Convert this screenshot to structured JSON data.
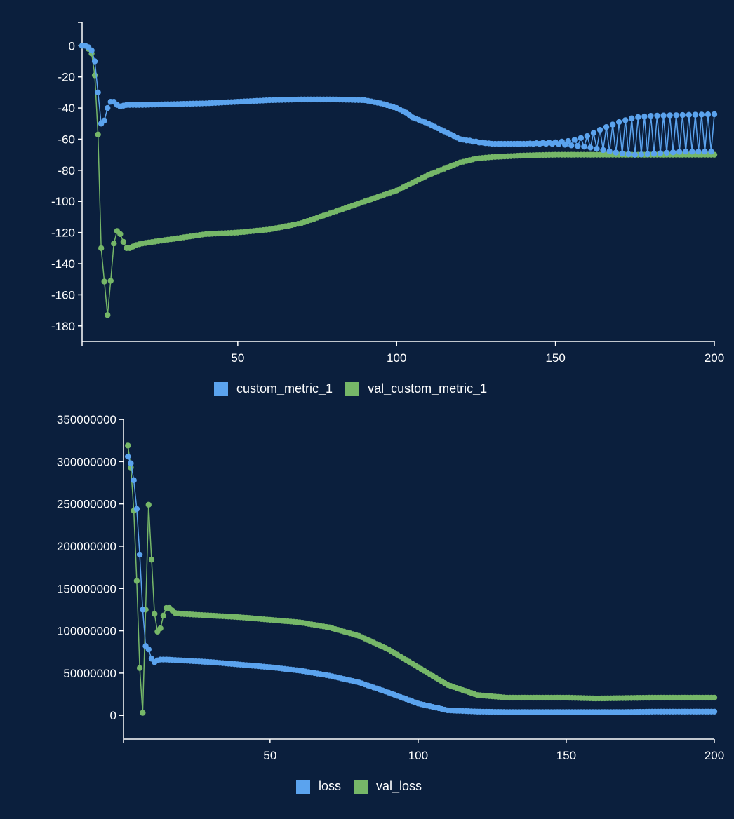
{
  "colors": {
    "background": "#0b1f3d",
    "series_blue": "#5ba3ee",
    "series_green": "#76b768",
    "axis": "#ffffff"
  },
  "chart_data": [
    {
      "type": "line",
      "title": "",
      "xlabel": "",
      "ylabel": "",
      "xlim": [
        1,
        200
      ],
      "ylim": [
        -190,
        15
      ],
      "xticks": [
        50,
        100,
        150,
        200
      ],
      "yticks": [
        0,
        -20,
        -40,
        -60,
        -80,
        -100,
        -120,
        -140,
        -160,
        -180
      ],
      "legend_position": "bottom-center",
      "markers": true,
      "series": [
        {
          "name": "custom_metric_1",
          "color": "#5ba3ee",
          "points": [
            [
              1,
              0
            ],
            [
              2,
              0
            ],
            [
              3,
              -1
            ],
            [
              4,
              -3
            ],
            [
              5,
              -10
            ],
            [
              6,
              -30
            ],
            [
              7,
              -50
            ],
            [
              8,
              -48
            ],
            [
              9,
              -40
            ],
            [
              10,
              -36
            ],
            [
              11,
              -36
            ],
            [
              12,
              -38
            ],
            [
              13,
              -39
            ],
            [
              15,
              -38
            ],
            [
              20,
              -38
            ],
            [
              30,
              -37.5
            ],
            [
              40,
              -37
            ],
            [
              50,
              -36
            ],
            [
              60,
              -35
            ],
            [
              70,
              -34.5
            ],
            [
              80,
              -34.5
            ],
            [
              90,
              -35
            ],
            [
              95,
              -37
            ],
            [
              100,
              -40
            ],
            [
              103,
              -43
            ],
            [
              105,
              -46
            ],
            [
              110,
              -50
            ],
            [
              115,
              -55
            ],
            [
              120,
              -60
            ],
            [
              125,
              -62
            ],
            [
              130,
              -63
            ],
            [
              140,
              -63
            ],
            [
              150,
              -62
            ],
            [
              155,
              -61
            ],
            [
              160,
              -58
            ],
            [
              165,
              -53
            ],
            [
              170,
              -49
            ],
            [
              175,
              -46
            ],
            [
              180,
              -45
            ],
            [
              190,
              -44.5
            ],
            [
              200,
              -44
            ]
          ],
          "lower_envelope": [
            [
              105,
              -46
            ],
            [
              110,
              -50
            ],
            [
              115,
              -55
            ],
            [
              120,
              -60
            ],
            [
              130,
              -63
            ],
            [
              150,
              -63
            ],
            [
              160,
              -65
            ],
            [
              165,
              -67
            ],
            [
              170,
              -69
            ],
            [
              175,
              -70
            ],
            [
              180,
              -69.5
            ],
            [
              190,
              -68
            ],
            [
              200,
              -68
            ]
          ],
          "oscillation_range": [
            104,
            200
          ]
        },
        {
          "name": "val_custom_metric_1",
          "color": "#76b768",
          "points": [
            [
              1,
              0
            ],
            [
              2,
              0
            ],
            [
              3,
              -2
            ],
            [
              4,
              -5
            ],
            [
              5,
              -19
            ],
            [
              6,
              -57
            ],
            [
              7,
              -130
            ],
            [
              9,
              -173
            ],
            [
              10,
              -151
            ],
            [
              11,
              -127
            ],
            [
              12,
              -119
            ],
            [
              13,
              -121
            ],
            [
              14,
              -126
            ],
            [
              15,
              -130
            ],
            [
              16,
              -130
            ],
            [
              18,
              -128
            ],
            [
              20,
              -127
            ],
            [
              30,
              -124
            ],
            [
              40,
              -121
            ],
            [
              50,
              -120
            ],
            [
              60,
              -118
            ],
            [
              70,
              -114
            ],
            [
              80,
              -107
            ],
            [
              90,
              -100
            ],
            [
              100,
              -93
            ],
            [
              110,
              -83
            ],
            [
              120,
              -75
            ],
            [
              125,
              -72.5
            ],
            [
              130,
              -71.5
            ],
            [
              140,
              -70.5
            ],
            [
              150,
              -70
            ],
            [
              160,
              -70
            ],
            [
              170,
              -70
            ],
            [
              180,
              -70
            ],
            [
              190,
              -70
            ],
            [
              200,
              -70
            ]
          ]
        }
      ]
    },
    {
      "type": "line",
      "title": "",
      "xlabel": "",
      "ylabel": "",
      "xlim": [
        1,
        200
      ],
      "ylim": [
        -28000000,
        350000000
      ],
      "xticks": [
        50,
        100,
        150,
        200
      ],
      "yticks": [
        0,
        50000000,
        100000000,
        150000000,
        200000000,
        250000000,
        300000000,
        350000000
      ],
      "legend_position": "bottom-center",
      "markers": true,
      "series": [
        {
          "name": "loss",
          "color": "#5ba3ee",
          "points": [
            [
              2,
              306000000
            ],
            [
              3,
              298000000
            ],
            [
              4,
              278000000
            ],
            [
              5,
              244000000
            ],
            [
              6,
              190000000
            ],
            [
              7,
              125000000
            ],
            [
              8,
              82000000
            ],
            [
              9,
              78000000
            ],
            [
              10,
              67000000
            ],
            [
              11,
              63000000
            ],
            [
              12,
              65000000
            ],
            [
              13,
              66000000
            ],
            [
              15,
              66000000
            ],
            [
              20,
              65000000
            ],
            [
              30,
              63000000
            ],
            [
              40,
              60000000
            ],
            [
              50,
              57000000
            ],
            [
              60,
              53000000
            ],
            [
              70,
              47000000
            ],
            [
              80,
              39000000
            ],
            [
              90,
              27000000
            ],
            [
              100,
              14000000
            ],
            [
              110,
              6000000
            ],
            [
              120,
              4500000
            ],
            [
              130,
              4000000
            ],
            [
              140,
              4000000
            ],
            [
              150,
              4000000
            ],
            [
              160,
              4000000
            ],
            [
              170,
              4000000
            ],
            [
              180,
              4500000
            ],
            [
              190,
              4500000
            ],
            [
              200,
              4500000
            ]
          ]
        },
        {
          "name": "val_loss",
          "color": "#76b768",
          "points": [
            [
              2,
              319000000
            ],
            [
              3,
              293000000
            ],
            [
              4,
              242000000
            ],
            [
              5,
              159000000
            ],
            [
              6,
              56000000
            ],
            [
              7,
              3000000
            ],
            [
              8,
              125000000
            ],
            [
              9,
              249000000
            ],
            [
              10,
              184000000
            ],
            [
              11,
              120000000
            ],
            [
              12,
              99000000
            ],
            [
              13,
              103000000
            ],
            [
              14,
              118000000
            ],
            [
              15,
              127000000
            ],
            [
              16,
              127000000
            ],
            [
              17,
              124000000
            ],
            [
              18,
              121000000
            ],
            [
              20,
              120000000
            ],
            [
              30,
              118000000
            ],
            [
              40,
              116000000
            ],
            [
              50,
              113000000
            ],
            [
              60,
              110000000
            ],
            [
              70,
              104000000
            ],
            [
              80,
              94000000
            ],
            [
              90,
              78000000
            ],
            [
              100,
              57000000
            ],
            [
              110,
              36000000
            ],
            [
              120,
              24000000
            ],
            [
              130,
              21000000
            ],
            [
              140,
              21000000
            ],
            [
              150,
              21000000
            ],
            [
              160,
              20000000
            ],
            [
              170,
              20500000
            ],
            [
              180,
              21000000
            ],
            [
              190,
              21000000
            ],
            [
              200,
              21000000
            ]
          ]
        }
      ]
    }
  ]
}
